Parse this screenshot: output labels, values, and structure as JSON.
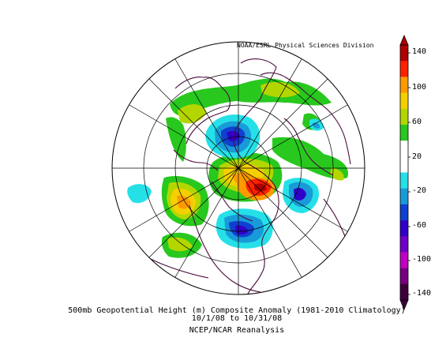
{
  "credit": "NOAA/ESRL Physical Sciences Division",
  "caption": {
    "line1": "500mb Geopotential Height (m) Composite Anomaly (1981-2010 Climatology)",
    "line2": "10/1/08 to 10/31/08",
    "line3": "NCEP/NCAR Reanalysis"
  },
  "colorbar": {
    "labels": [
      "140",
      "100",
      "60",
      "20",
      "-20",
      "-60",
      "-100",
      "-140"
    ],
    "colors": [
      "#b00000",
      "#ff2000",
      "#ff9900",
      "#f5d000",
      "#b4d600",
      "#28c81e",
      "#ffffff",
      "#ffffff",
      "#26e0e8",
      "#189bd8",
      "#1040d0",
      "#3000c8",
      "#7000c8",
      "#c000c0",
      "#760080",
      "#3c003c"
    ]
  },
  "colors": {
    "land_outline": "#4a0a3a",
    "grid": "#000000"
  }
}
